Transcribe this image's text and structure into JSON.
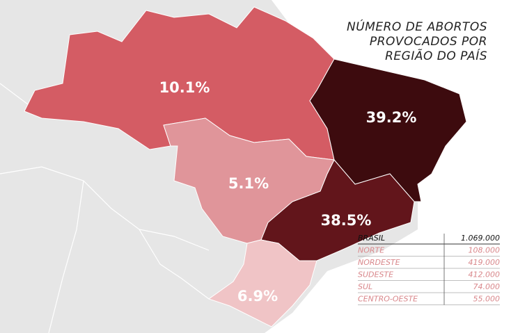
{
  "title": [
    "NÚMERO DE ABORTOS",
    "PROVOCADOS POR",
    "REGIÃO DO PAÍS"
  ],
  "regions": [
    {
      "label": "10.1%",
      "color": "#d45c64"
    },
    {
      "label": "39.2%",
      "color": "#3d0b0e"
    },
    {
      "label": "38.5%",
      "color": "#62151b"
    },
    {
      "label": "5.1%",
      "color": "#e0959a"
    },
    {
      "label": "6.9%",
      "color": "#f0c4c6"
    }
  ],
  "table": {
    "header": [
      "BRASIL",
      "1.069.000"
    ],
    "rows": [
      [
        "NORTE",
        "108.000"
      ],
      [
        "NORDESTE",
        "419.000"
      ],
      [
        "SUDESTE",
        "412.000"
      ],
      [
        "SUL",
        "74.000"
      ],
      [
        "CENTRO-OESTE",
        "55.000"
      ]
    ]
  }
}
